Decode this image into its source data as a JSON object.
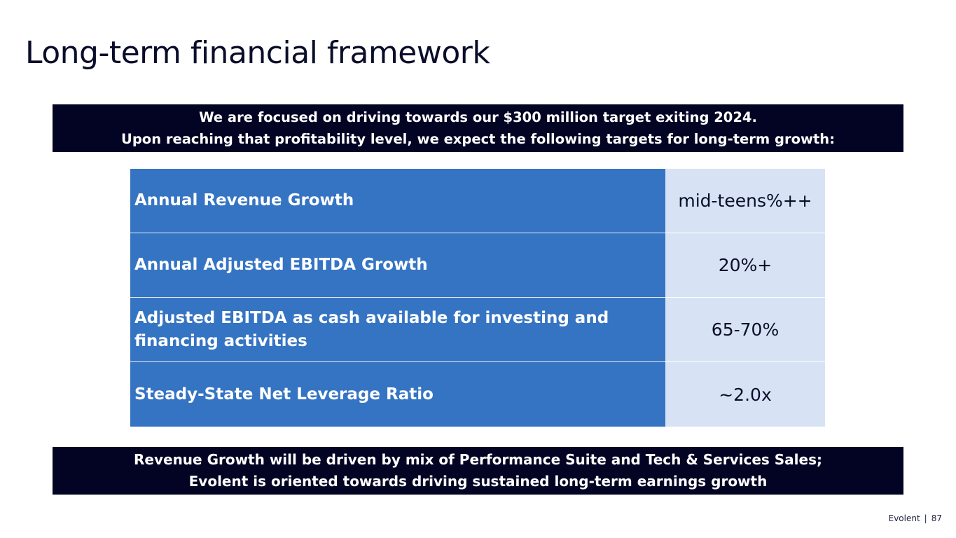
{
  "slide": {
    "title": "Long-term financial framework"
  },
  "banner_top": {
    "line1": "We are focused on driving towards our $300 million target exiting 2024.",
    "line2": "Upon reaching that profitability level, we expect the following targets for long-term growth:"
  },
  "targets": [
    {
      "metric": "Annual Revenue Growth",
      "value": "mid-teens%++"
    },
    {
      "metric": "Annual Adjusted EBITDA Growth",
      "value": "20%+"
    },
    {
      "metric": "Adjusted EBITDA as cash available for investing and financing activities",
      "value": "65-70%"
    },
    {
      "metric": "Steady-State Net Leverage Ratio",
      "value": "~2.0x"
    }
  ],
  "banner_bottom": {
    "line1": "Revenue Growth will be driven by mix of Performance Suite and Tech & Services Sales;",
    "line2": "Evolent is oriented towards driving sustained long-term earnings growth"
  },
  "footer": {
    "company": "Evolent",
    "separator": "|",
    "page_number": "87"
  },
  "colors": {
    "navy_banner": "#030424",
    "metric_blue": "#3574c3",
    "value_light_blue": "#d7e3f4",
    "title_text": "#0a0d2a"
  }
}
